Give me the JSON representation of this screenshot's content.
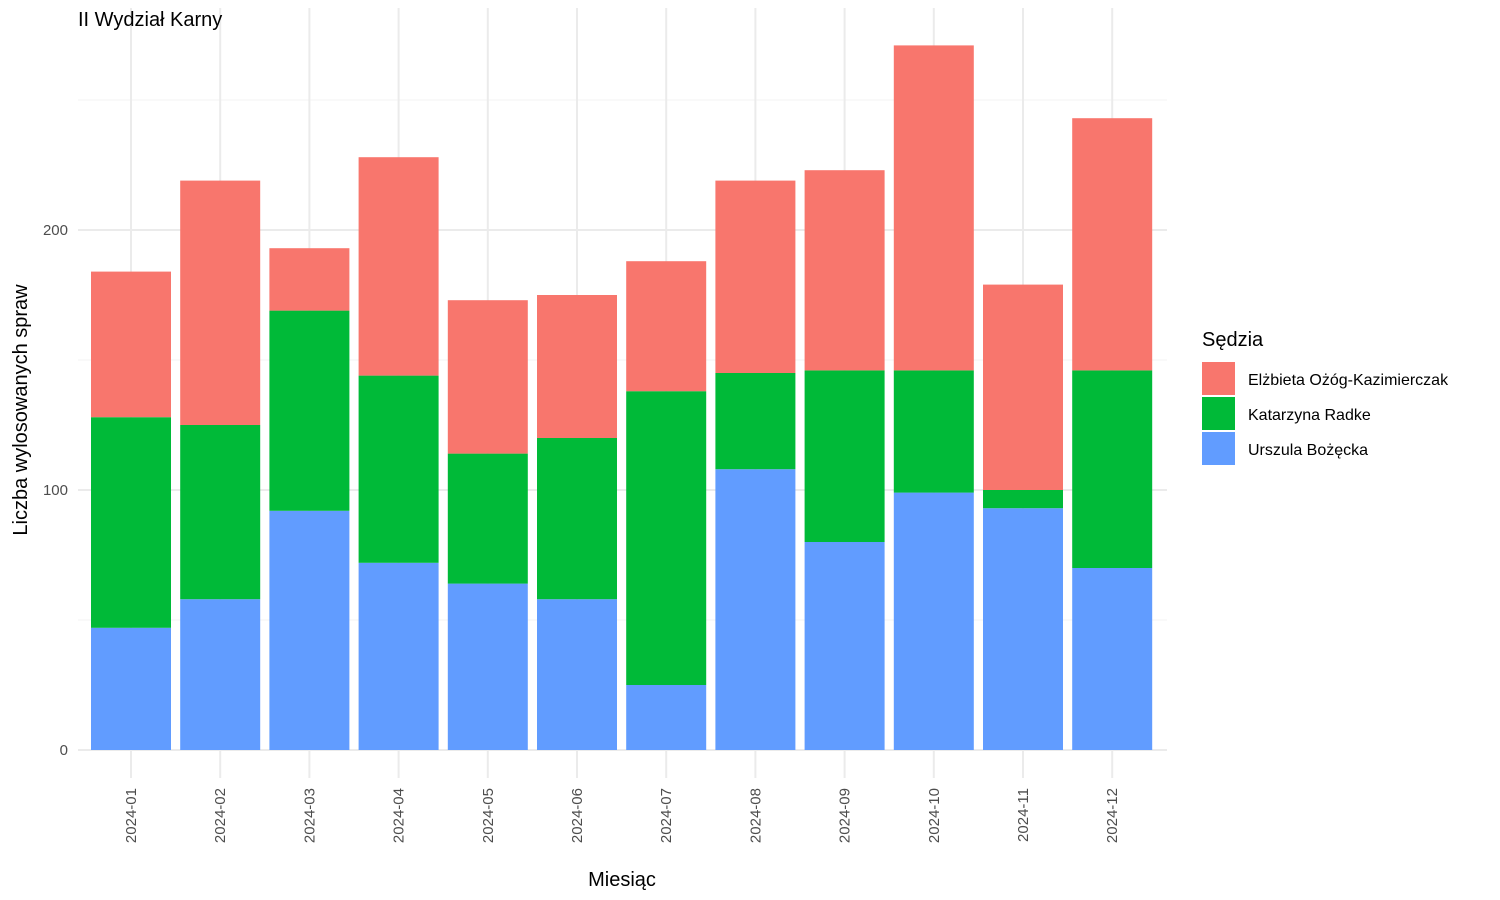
{
  "chart_data": {
    "type": "bar",
    "stacked": true,
    "title": "II Wydział Karny",
    "xlabel": "Miesiąc",
    "ylabel": "Liczba wylosowanych spraw",
    "ylim": [
      0,
      280
    ],
    "yticks": [
      0,
      100,
      200
    ],
    "grid": true,
    "legend_position": "right",
    "legend_title": "Sędzia",
    "categories": [
      "2024-01",
      "2024-02",
      "2024-03",
      "2024-04",
      "2024-05",
      "2024-06",
      "2024-07",
      "2024-08",
      "2024-09",
      "2024-10",
      "2024-11",
      "2024-12"
    ],
    "series": [
      {
        "name": "Urszula Bożęcka",
        "color": "#619cff",
        "values": [
          47,
          58,
          92,
          72,
          64,
          58,
          25,
          108,
          80,
          99,
          93,
          70
        ]
      },
      {
        "name": "Katarzyna Radke",
        "color": "#00ba38",
        "values": [
          81,
          67,
          77,
          72,
          50,
          62,
          113,
          37,
          66,
          47,
          7,
          76
        ]
      },
      {
        "name": "Elżbieta Ożóg-Kazimierczak",
        "color": "#f8766d",
        "values": [
          56,
          94,
          24,
          84,
          59,
          55,
          50,
          74,
          77,
          125,
          79,
          97
        ]
      }
    ],
    "legend_order": [
      "Elżbieta Ożóg-Kazimierczak",
      "Katarzyna Radke",
      "Urszula Bożęcka"
    ]
  }
}
